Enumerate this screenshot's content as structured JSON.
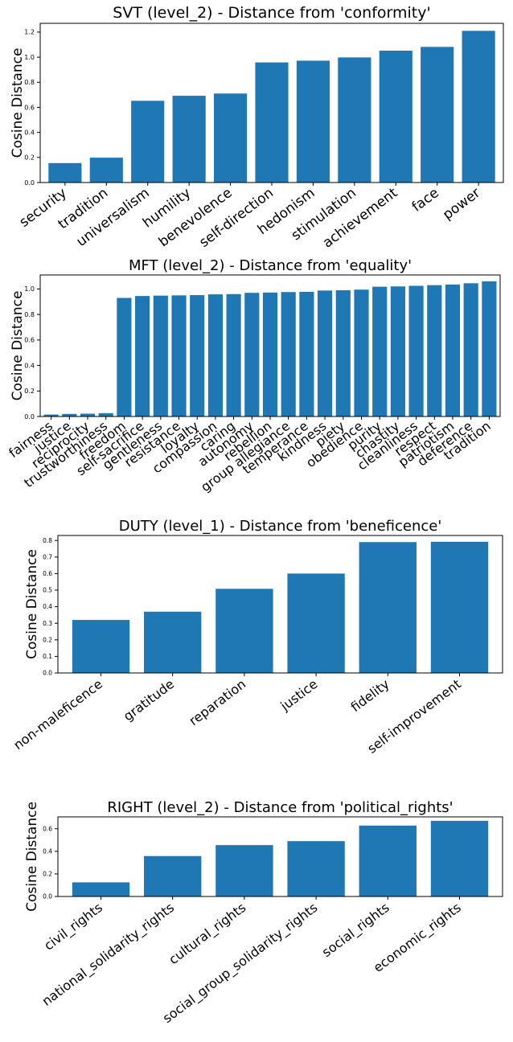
{
  "chart_data": [
    {
      "type": "bar",
      "title": "SVT (level_2)  - Distance from 'conformity'",
      "xlabel": "",
      "ylabel": "Cosine Distance",
      "categories": [
        "security",
        "tradition",
        "universalism",
        "humility",
        "benevolence",
        "self-direction",
        "hedonism",
        "stimulation",
        "achievement",
        "face",
        "power"
      ],
      "values": [
        0.155,
        0.198,
        0.652,
        0.692,
        0.71,
        0.958,
        0.972,
        0.998,
        1.052,
        1.082,
        1.21
      ],
      "ylim": [
        0,
        1.27
      ],
      "yticks": [
        "0.0",
        "0.2",
        "0.4",
        "0.6",
        "0.8",
        "1.0",
        "1.2"
      ],
      "color": "#1f77b4",
      "grid": false,
      "legend": "none"
    },
    {
      "type": "bar",
      "title": "MFT (level_2) - Distance from 'equality'",
      "xlabel": "",
      "ylabel": "Cosine Distance",
      "categories": [
        "fairness",
        "justice",
        "reciprocity",
        "trustworthiness",
        "freedom",
        "self-sacrifice",
        "gentleness",
        "resistance",
        "loyalty",
        "compassion",
        "caring",
        "autonomy",
        "rebellion",
        "group allegiance",
        "temperance",
        "kindness",
        "piety",
        "obedience",
        "purity",
        "chastity",
        "cleanliness",
        "respect",
        "patriotism",
        "deference",
        "tradition"
      ],
      "values": [
        0.015,
        0.02,
        0.022,
        0.026,
        0.93,
        0.945,
        0.948,
        0.95,
        0.952,
        0.958,
        0.96,
        0.97,
        0.972,
        0.976,
        0.978,
        0.988,
        0.99,
        0.995,
        1.018,
        1.02,
        1.025,
        1.03,
        1.035,
        1.045,
        1.06
      ],
      "ylim": [
        0,
        1.11
      ],
      "yticks": [
        "0.0",
        "0.2",
        "0.4",
        "0.6",
        "0.8",
        "1.0"
      ],
      "color": "#1f77b4",
      "grid": false,
      "legend": "none"
    },
    {
      "type": "bar",
      "title": "DUTY (level_1) - Distance from 'beneficence'",
      "xlabel": "",
      "ylabel": "Cosine Distance",
      "categories": [
        "non-maleficence",
        "gratitude",
        "reparation",
        "justice",
        "fidelity",
        "self-improvement"
      ],
      "values": [
        0.32,
        0.37,
        0.508,
        0.6,
        0.79,
        0.792
      ],
      "ylim": [
        0,
        0.83
      ],
      "yticks": [
        "0.0",
        "0.1",
        "0.2",
        "0.3",
        "0.4",
        "0.5",
        "0.6",
        "0.7",
        "0.8"
      ],
      "color": "#1f77b4",
      "grid": false,
      "legend": "none"
    },
    {
      "type": "bar",
      "title": "RIGHT (level_2) - Distance from 'political_rights'",
      "xlabel": "",
      "ylabel": "Cosine Distance",
      "categories": [
        "civil_rights",
        "national_solidarity_rights",
        "cultural_rights",
        "social_group_solidarity_rights",
        "social_rights",
        "economic_rights"
      ],
      "values": [
        0.125,
        0.358,
        0.455,
        0.49,
        0.628,
        0.67
      ],
      "ylim": [
        0,
        0.705
      ],
      "yticks": [
        "0.0",
        "0.2",
        "0.4",
        "0.6"
      ],
      "color": "#1f77b4",
      "grid": false,
      "legend": "none"
    }
  ]
}
